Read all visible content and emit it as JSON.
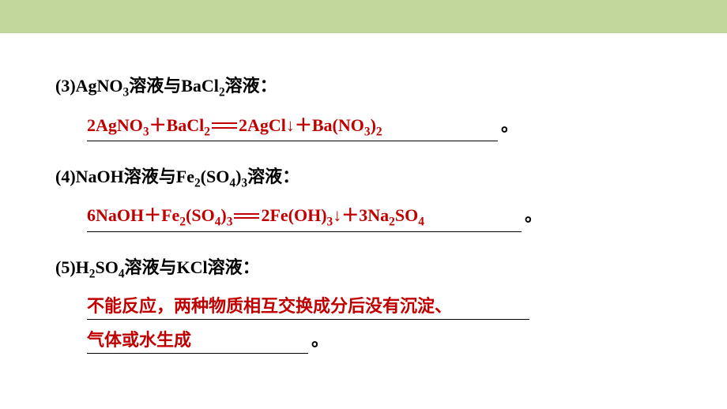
{
  "styling": {
    "top_bar_color": "#c2d79b",
    "background_color": "#ffffff",
    "question_color": "#000000",
    "answer_color": "#c00000",
    "underline_color": "#000000",
    "question_fontsize": 22,
    "answer_fontsize": 22,
    "font_weight": "bold"
  },
  "questions": {
    "q3": {
      "label_prefix": "(3)AgNO",
      "label_sub1": "3",
      "label_mid1": "溶液与BaCl",
      "label_sub2": "2",
      "label_suffix": "溶液：",
      "answer_p1": "2AgNO",
      "answer_s1": "3",
      "answer_p2": "＋BaCl",
      "answer_s2": "2",
      "answer_p3": "2AgCl↓＋Ba(NO",
      "answer_s3": "3",
      "answer_p4": ")",
      "answer_s4": "2",
      "period": "。"
    },
    "q4": {
      "label_prefix": "(4)NaOH溶液与Fe",
      "label_sub1": "2",
      "label_mid1": "(SO",
      "label_sub2": "4",
      "label_mid2": ")",
      "label_sub3": "3",
      "label_suffix": "溶液：",
      "answer_p1": "6NaOH＋Fe",
      "answer_s1": "2",
      "answer_p2": "(SO",
      "answer_s2": "4",
      "answer_p3": ")",
      "answer_s3": "3",
      "answer_p4": "2Fe(OH)",
      "answer_s4": "3",
      "answer_p5": "↓＋3Na",
      "answer_s5": "2",
      "answer_p6": "SO",
      "answer_s6": "4",
      "period": "。"
    },
    "q5": {
      "label_prefix": "(5)H",
      "label_sub1": "2",
      "label_mid1": "SO",
      "label_sub2": "4",
      "label_suffix": "溶液与KCl溶液：",
      "answer_line1": "不能反应，两种物质相互交换成分后没有沉淀、",
      "answer_line2": "气体或水生成",
      "period": "。"
    }
  }
}
